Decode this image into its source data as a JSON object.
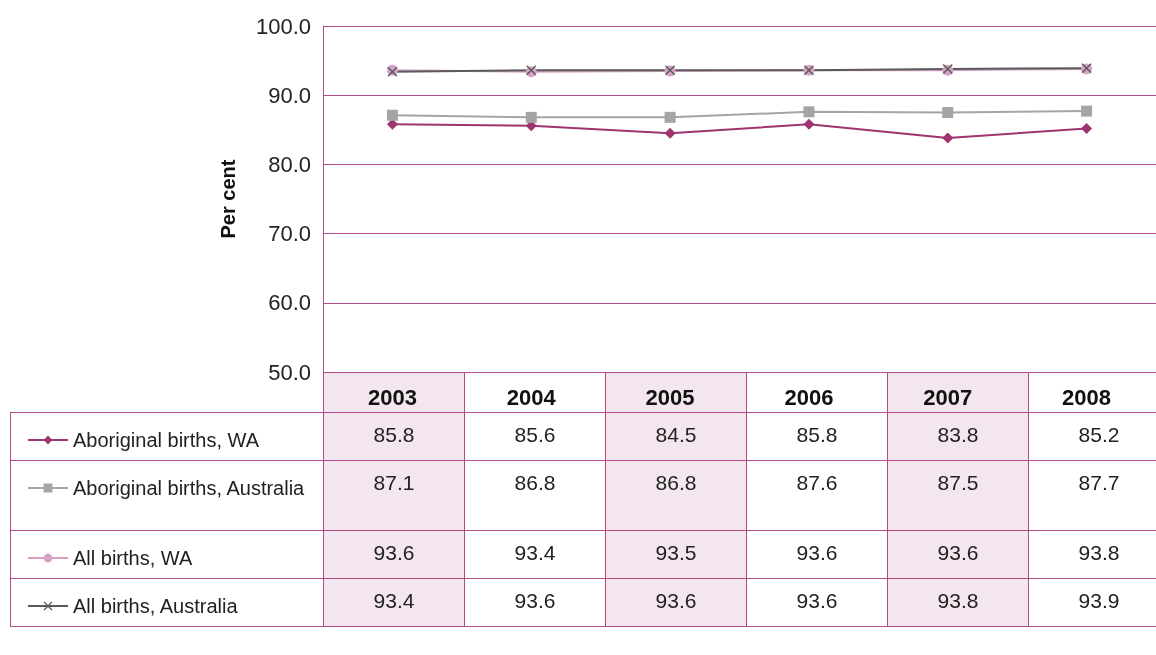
{
  "chart_data": {
    "type": "line",
    "ylabel": "Per cent",
    "categories": [
      "2003",
      "2004",
      "2005",
      "2006",
      "2007",
      "2008"
    ],
    "series": [
      {
        "name": "Aboriginal births, WA",
        "color": "#9e3470",
        "marker": "diamond",
        "values": [
          85.8,
          85.6,
          84.5,
          85.8,
          83.8,
          85.2
        ]
      },
      {
        "name": "Aboriginal births, Australia",
        "color": "#a5a5a8",
        "marker": "square",
        "values": [
          87.1,
          86.8,
          86.8,
          87.6,
          87.5,
          87.7
        ]
      },
      {
        "name": "All births, WA",
        "color": "#d6a2c6",
        "marker": "circle",
        "values": [
          93.6,
          93.4,
          93.5,
          93.6,
          93.6,
          93.8
        ]
      },
      {
        "name": "All births, Australia",
        "color": "#5a5a5a",
        "marker": "cross",
        "values": [
          93.4,
          93.6,
          93.6,
          93.6,
          93.8,
          93.9
        ]
      }
    ],
    "ylim": [
      50,
      100
    ],
    "yticks": [
      {
        "value": 50,
        "label": "50.0"
      },
      {
        "value": 60,
        "label": "60.0"
      },
      {
        "value": 70,
        "label": "70.0"
      },
      {
        "value": 80,
        "label": "80.0"
      },
      {
        "value": 90,
        "label": "90.0"
      },
      {
        "value": 100,
        "label": "100.0"
      }
    ],
    "grid": "y",
    "legend": "bottom left",
    "data_labels": true,
    "line_style": "solid"
  }
}
